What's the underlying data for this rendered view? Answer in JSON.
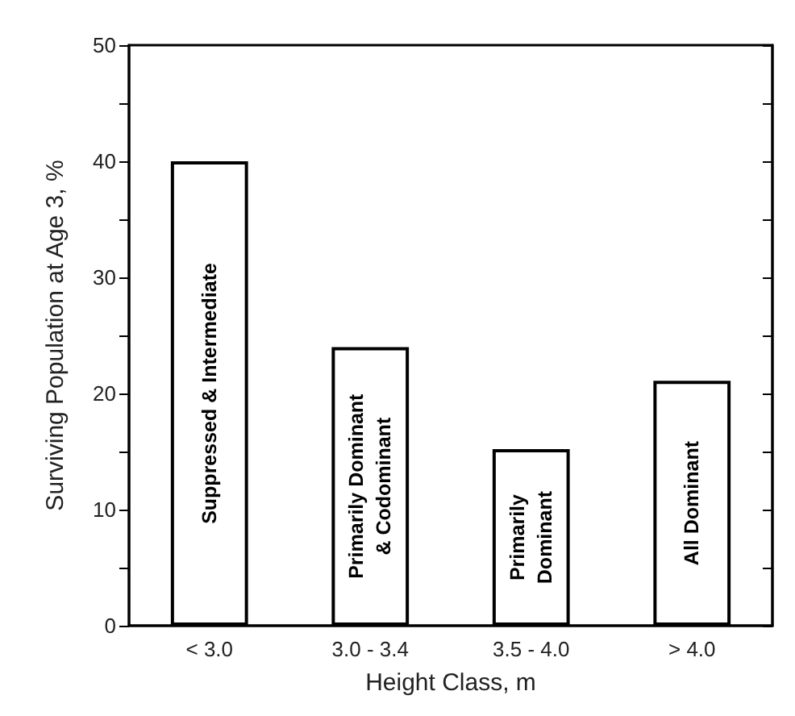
{
  "chart_data": {
    "type": "bar",
    "xlabel": "Height Class, m",
    "ylabel": "Surviving Population at Age 3, %",
    "categories": [
      "< 3.0",
      "3.0 - 3.4",
      "3.5 - 4.0",
      "> 4.0"
    ],
    "values": [
      40,
      24.0,
      15.2,
      21.1
    ],
    "color": "#ffffff",
    "ylim": [
      0,
      50
    ],
    "yticks": [
      0,
      {
        "value": 5,
        "label": null
      },
      10,
      {
        "value": 15,
        "label": null
      },
      20,
      {
        "value": 25,
        "label": null
      },
      30,
      {
        "value": 35,
        "label": null
      },
      40,
      {
        "value": 45,
        "label": null
      },
      50
    ],
    "annotations": [
      "Suppressed & Intermediate",
      "Primarily Dominant\n& Codominant",
      "Primarily\nDominant",
      "All Dominant"
    ],
    "grid": false
  }
}
